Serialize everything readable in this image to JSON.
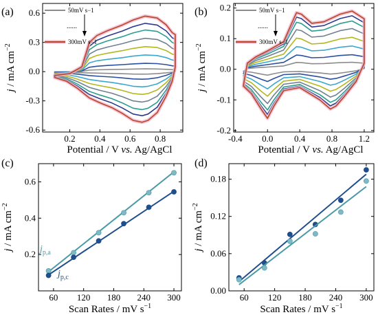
{
  "colors": {
    "gray": "#8c8c8c",
    "blue": "#2b4f9e",
    "cyan": "#3aa7cf",
    "olive": "#b5b51c",
    "slate": "#708090",
    "teal": "#2a9d8f",
    "navy": "#2e3a8c",
    "red": "#b5472b",
    "dark_blue_fit": "#1f4e8c",
    "light_teal_fit": "#4a9aa6",
    "pink_glow": "#f3b4c8"
  },
  "chart_data": [
    {
      "panel": "(a)",
      "type": "line",
      "xlabel": "Potential / V vs. Ag/AgCl",
      "ylabel": "j / mA cm−2",
      "xlim": [
        0.02,
        0.95
      ],
      "ylim": [
        -0.62,
        0.7
      ],
      "x_ticks": [
        "0.2",
        "0.4",
        "0.6",
        "0.8"
      ],
      "x_tick_values": [
        0.2,
        0.4,
        0.6,
        0.8
      ],
      "y_ticks": [
        "-0.6",
        "-0.3",
        "0.0",
        "0.3",
        "0.6"
      ],
      "y_tick_values": [
        -0.6,
        -0.3,
        0.0,
        0.3,
        0.6
      ],
      "legend": {
        "top": "50mV s−1",
        "bottom": "300mV s−1",
        "dots": "......",
        "position": "top-left"
      },
      "series_scales": [
        0.05,
        0.15,
        0.3,
        0.45,
        0.6,
        0.75,
        0.87,
        1.0
      ],
      "curve": {
        "anodic": [
          [
            0.1,
            -0.04
          ],
          [
            0.2,
            -0.02
          ],
          [
            0.28,
            0.05
          ],
          [
            0.33,
            0.3
          ],
          [
            0.38,
            0.37
          ],
          [
            0.45,
            0.42
          ],
          [
            0.55,
            0.48
          ],
          [
            0.62,
            0.53
          ],
          [
            0.7,
            0.57
          ],
          [
            0.78,
            0.55
          ],
          [
            0.84,
            0.48
          ],
          [
            0.88,
            0.4
          ],
          [
            0.9,
            0.38
          ]
        ],
        "cathodic": [
          [
            0.9,
            0.38
          ],
          [
            0.9,
            0.05
          ],
          [
            0.88,
            -0.1
          ],
          [
            0.84,
            -0.25
          ],
          [
            0.78,
            -0.42
          ],
          [
            0.72,
            -0.5
          ],
          [
            0.68,
            -0.52
          ],
          [
            0.62,
            -0.5
          ],
          [
            0.55,
            -0.43
          ],
          [
            0.48,
            -0.37
          ],
          [
            0.4,
            -0.32
          ],
          [
            0.33,
            -0.27
          ],
          [
            0.25,
            -0.17
          ],
          [
            0.18,
            -0.1
          ],
          [
            0.1,
            -0.06
          ]
        ]
      }
    },
    {
      "panel": "(b)",
      "type": "line",
      "xlabel": "Potential / V vs. Ag/AgCl",
      "ylabel": "j / mA cm−2",
      "xlim": [
        -0.42,
        1.32
      ],
      "ylim": [
        -0.205,
        0.215
      ],
      "x_ticks": [
        "-0.4",
        "0.0",
        "0.4",
        "0.8",
        "1.2"
      ],
      "x_tick_values": [
        -0.4,
        0.0,
        0.4,
        0.8,
        1.2
      ],
      "y_ticks": [
        "-0.2",
        "-0.1",
        "0.0",
        "0.1",
        "0.2"
      ],
      "y_tick_values": [
        -0.2,
        -0.1,
        0.0,
        0.1,
        0.2
      ],
      "legend": {
        "top": "50mV s−1",
        "bottom": "300mV s−1",
        "dots": "......",
        "position": "top-left"
      },
      "series_scales": [
        0.12,
        0.25,
        0.4,
        0.55,
        0.7,
        0.83,
        0.92,
        1.0
      ],
      "curve": {
        "anodic": [
          [
            -0.3,
            -0.055
          ],
          [
            -0.25,
            0.02
          ],
          [
            -0.15,
            0.04
          ],
          [
            0.0,
            0.06
          ],
          [
            0.2,
            0.09
          ],
          [
            0.3,
            0.15
          ],
          [
            0.36,
            0.185
          ],
          [
            0.42,
            0.18
          ],
          [
            0.55,
            0.15
          ],
          [
            0.7,
            0.155
          ],
          [
            0.9,
            0.18
          ],
          [
            1.05,
            0.19
          ],
          [
            1.2,
            0.165
          ]
        ],
        "cathodic": [
          [
            1.2,
            0.165
          ],
          [
            1.2,
            0.02
          ],
          [
            1.1,
            -0.04
          ],
          [
            0.95,
            -0.09
          ],
          [
            0.85,
            -0.12
          ],
          [
            0.78,
            -0.13
          ],
          [
            0.65,
            -0.1
          ],
          [
            0.4,
            -0.06
          ],
          [
            0.2,
            -0.07
          ],
          [
            0.08,
            -0.12
          ],
          [
            0.0,
            -0.16
          ],
          [
            -0.08,
            -0.13
          ],
          [
            -0.2,
            -0.08
          ],
          [
            -0.3,
            -0.055
          ]
        ]
      }
    },
    {
      "panel": "(c)",
      "type": "scatter",
      "xlabel": "Scan Rates / mV s−1",
      "ylabel": "j / mA cm−2",
      "xlim": [
        30,
        315
      ],
      "ylim": [
        0.0,
        0.7
      ],
      "x_ticks": [
        "60",
        "120",
        "180",
        "240",
        "300"
      ],
      "x_tick_values": [
        60,
        120,
        180,
        240,
        300
      ],
      "y_ticks": [
        "0.2",
        "0.4",
        "0.6"
      ],
      "y_tick_values": [
        0.2,
        0.4,
        0.6
      ],
      "series": [
        {
          "name": "j_p,a",
          "label_main": "j",
          "label_sub": "p,a",
          "x": [
            50,
            100,
            150,
            200,
            250,
            300
          ],
          "y": [
            0.11,
            0.21,
            0.32,
            0.43,
            0.54,
            0.65
          ],
          "fit": [
            [
              50,
              0.105
            ],
            [
              300,
              0.655
            ]
          ]
        },
        {
          "name": "j_p,c",
          "label_main": "j",
          "label_sub": "p,c",
          "x": [
            50,
            100,
            150,
            200,
            250,
            300
          ],
          "y": [
            0.085,
            0.185,
            0.275,
            0.37,
            0.46,
            0.545
          ],
          "fit": [
            [
              50,
              0.088
            ],
            [
              300,
              0.548
            ]
          ]
        }
      ]
    },
    {
      "panel": "(d)",
      "type": "scatter",
      "xlabel": "Scan Rates / mV s−1",
      "ylabel": "j / mA cm−2",
      "xlim": [
        30,
        315
      ],
      "ylim": [
        0.0,
        0.205
      ],
      "x_ticks": [
        "60",
        "120",
        "180",
        "240",
        "300"
      ],
      "x_tick_values": [
        60,
        120,
        180,
        240,
        300
      ],
      "y_ticks": [
        "0.00",
        "0.06",
        "0.12",
        "0.18"
      ],
      "y_tick_values": [
        0.0,
        0.06,
        0.12,
        0.18
      ],
      "series": [
        {
          "name": "dark",
          "x": [
            50,
            100,
            150,
            200,
            250,
            300
          ],
          "y": [
            0.021,
            0.045,
            0.091,
            0.107,
            0.146,
            0.195
          ],
          "fit": [
            [
              50,
              0.015
            ],
            [
              300,
              0.188
            ]
          ]
        },
        {
          "name": "light",
          "x": [
            50,
            100,
            150,
            200,
            250,
            300
          ],
          "y": [
            0.018,
            0.037,
            0.08,
            0.092,
            0.127,
            0.177
          ],
          "fit": [
            [
              50,
              0.01
            ],
            [
              300,
              0.168
            ]
          ]
        }
      ]
    }
  ]
}
